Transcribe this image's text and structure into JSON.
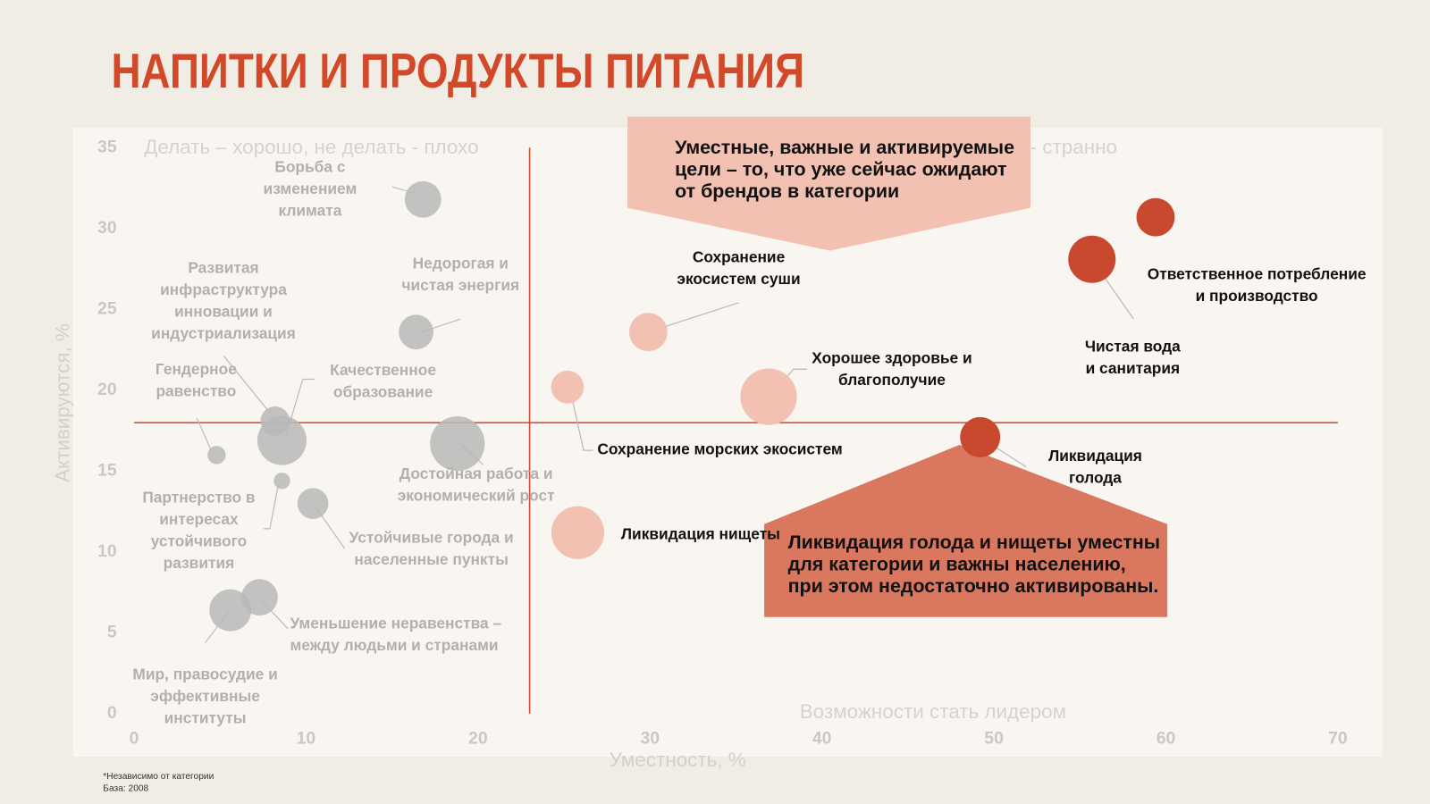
{
  "chart_data": {
    "type": "bubble",
    "title": "НАПИТКИ И ПРОДУКТЫ ПИТАНИЯ",
    "x_label": "Уместность, %",
    "y_label": "Активируются, %",
    "xlim": [
      0,
      70
    ],
    "ylim": [
      0,
      35
    ],
    "xticks": [
      0,
      10,
      20,
      30,
      40,
      50,
      60,
      70
    ],
    "yticks": [
      0,
      5,
      10,
      15,
      20,
      25,
      30,
      35
    ],
    "reference_lines": {
      "x": 23,
      "y": 18,
      "color": "#c9492f"
    },
    "quadrant_labels": [
      "Делать – хорошо, не делать - плохо",
      "ь - странно",
      "Возможности стать лидером"
    ],
    "callouts": [
      {
        "lines": [
          "Уместные, важные и активируемые",
          "цели – то, что уже сейчас ожидают",
          "от брендов в категории"
        ],
        "color": "#f2c1b2"
      },
      {
        "lines": [
          "Ликвидация голода и нищеты уместны",
          "для категории и важны населению,",
          "при этом недостаточно активированы."
        ],
        "color": "#d9775f"
      }
    ],
    "points": [
      {
        "label": [
          "Борьба с",
          "изменением",
          "климата"
        ],
        "x": 16.8,
        "y": 31.8,
        "size": 20,
        "color": "#b9b9b9"
      },
      {
        "label": [
          "Недорогая и",
          "чистая энергия"
        ],
        "x": 16.4,
        "y": 23.6,
        "size": 19,
        "color": "#b9b9b9"
      },
      {
        "label": [
          "Развитая",
          "инфраструктура",
          "инновации и",
          "индустриализация"
        ],
        "x": 8.2,
        "y": 18.1,
        "size": 16,
        "color": "#b9b9b9"
      },
      {
        "label": [
          "Гендерное",
          "равенство"
        ],
        "x": 4.8,
        "y": 16.0,
        "size": 10,
        "color": "#b9b9b9"
      },
      {
        "label": [
          "Качественное",
          "образование"
        ],
        "x": 8.6,
        "y": 16.9,
        "size": 27,
        "color": "#b9b9b9"
      },
      {
        "label": [
          "Достойная работа и",
          "экономический рост"
        ],
        "x": 18.8,
        "y": 16.7,
        "size": 30,
        "color": "#b9b9b9"
      },
      {
        "label": [
          "Партнерство в",
          "интересах",
          "устойчивого",
          "развития"
        ],
        "x": 8.6,
        "y": 14.4,
        "size": 9,
        "color": "#b9b9b9"
      },
      {
        "label": [
          "Устойчивые города и",
          "населенные пункты"
        ],
        "x": 10.4,
        "y": 13.0,
        "size": 17,
        "color": "#b9b9b9"
      },
      {
        "label": [
          "Уменьшение неравенства –",
          "между людьми и странами"
        ],
        "x": 7.3,
        "y": 7.2,
        "size": 20,
        "color": "#b9b9b9"
      },
      {
        "label": [
          "Мир, правосудие и",
          "эффективные",
          "институты"
        ],
        "x": 5.6,
        "y": 6.4,
        "size": 23,
        "color": "#b9b9b9"
      },
      {
        "label": [
          "Сохранение",
          "экосистем суши"
        ],
        "x": 29.9,
        "y": 23.6,
        "size": 21,
        "color": "#f2c1b2"
      },
      {
        "label": [
          "Сохранение морских экосистем"
        ],
        "x": 25.2,
        "y": 20.2,
        "size": 18,
        "color": "#f2c1b2"
      },
      {
        "label": [
          "Хорошее здоровье и",
          "благополучие"
        ],
        "x": 36.9,
        "y": 19.6,
        "size": 31,
        "color": "#f2c1b2"
      },
      {
        "label": [
          "Ликвидация нищеты"
        ],
        "x": 25.8,
        "y": 11.2,
        "size": 29,
        "color": "#f2c1b2"
      },
      {
        "label": [
          "Ликвидация",
          "голода"
        ],
        "x": 49.2,
        "y": 17.1,
        "size": 22,
        "color": "#c9492f"
      },
      {
        "label": [
          "Чистая вода",
          "и санитария"
        ],
        "x": 55.7,
        "y": 28.1,
        "size": 26,
        "color": "#c9492f"
      },
      {
        "label": [
          "Ответственное потребление",
          "и производство"
        ],
        "x": 59.4,
        "y": 30.7,
        "size": 21,
        "color": "#c9492f"
      }
    ],
    "footnotes": [
      "*Независимо от категории",
      "База: 2008"
    ]
  }
}
